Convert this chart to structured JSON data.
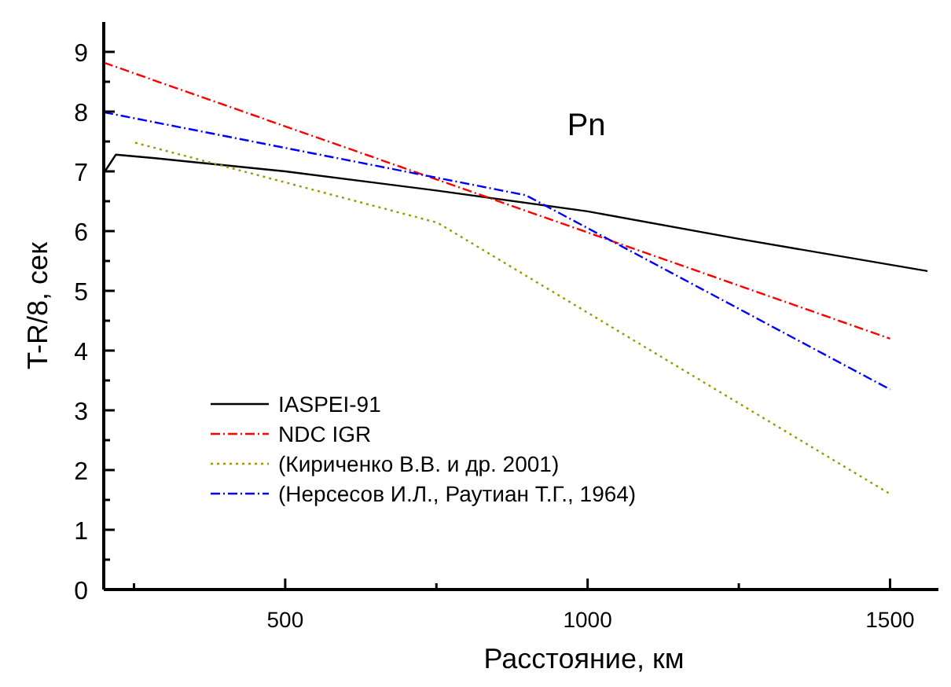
{
  "chart_data": {
    "type": "line",
    "title": "Pn",
    "xlabel": "Расстояние, км",
    "ylabel": "T-R/8, сек",
    "xlim": [
      200,
      1580
    ],
    "ylim": [
      0,
      9.5
    ],
    "xticks": [
      {
        "value": 250,
        "label": null
      },
      500,
      {
        "value": 750,
        "label": null
      },
      1000,
      {
        "value": 1250,
        "label": null
      },
      1500
    ],
    "yticks": [
      0,
      {
        "value": 0.5,
        "label": null
      },
      1,
      {
        "value": 1.5,
        "label": null
      },
      2,
      {
        "value": 2.5,
        "label": null
      },
      3,
      {
        "value": 3.5,
        "label": null
      },
      4,
      {
        "value": 4.5,
        "label": null
      },
      5,
      {
        "value": 5.5,
        "label": null
      },
      6,
      {
        "value": 6.5,
        "label": null
      },
      7,
      {
        "value": 7.5,
        "label": null
      },
      8,
      {
        "value": 8.5,
        "label": null
      },
      9
    ],
    "grid": false,
    "legend": "bottom left",
    "marker": "none",
    "series": [
      {
        "name": "IASPEI-91",
        "color": "#000000",
        "line_style": "solid",
        "x": [
          200,
          220,
          285,
          500,
          750,
          1000,
          1250,
          1562
        ],
        "values": [
          6.97,
          7.28,
          7.22,
          7.0,
          6.68,
          6.33,
          5.87,
          5.33
        ]
      },
      {
        "name": "NDC IGR",
        "color": "#ff0000",
        "line_style": "dashed",
        "x": [
          200,
          1500
        ],
        "values": [
          8.82,
          4.2
        ]
      },
      {
        "name": "(Кириченко В.В. и др. 2001)",
        "color": "#999900",
        "line_style": "dotted",
        "x": [
          252,
          752,
          1500
        ],
        "values": [
          7.48,
          6.14,
          1.6
        ]
      },
      {
        "name": "(Нерсесов И.Л., Раутиан Т.Г., 1964)",
        "color": "#0000ff",
        "line_style": "dashed",
        "x": [
          200,
          898,
          1500
        ],
        "values": [
          7.99,
          6.6,
          3.35
        ]
      }
    ]
  }
}
